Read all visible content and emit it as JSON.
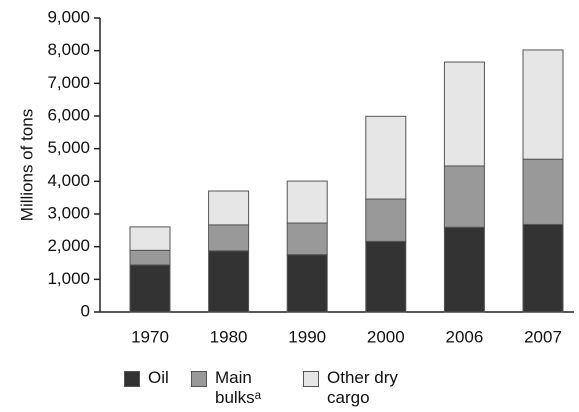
{
  "chart_data": {
    "type": "stacked_bar",
    "y_label": "Millions of tons",
    "categories": [
      "1970",
      "1980",
      "1990",
      "2000",
      "2006",
      "2007"
    ],
    "series": [
      {
        "name": "Oil",
        "color": "#333333",
        "values": [
          1440,
          1871,
          1755,
          2163,
          2595,
          2681
        ]
      },
      {
        "name": "Main bulksᵃ",
        "color": "#999999",
        "values": [
          448,
          796,
          968,
          1295,
          1876,
          1997
        ]
      },
      {
        "name": "Other dry cargo",
        "color": "#e6e6e6",
        "values": [
          717,
          1037,
          1285,
          2533,
          3181,
          3344
        ]
      }
    ],
    "ylim": [
      0,
      9000
    ],
    "yticks": [
      0,
      {
        "value": 1000,
        "label": "1,000"
      },
      {
        "value": 2000,
        "label": "2,000"
      },
      {
        "value": 3000,
        "label": "3,000"
      },
      {
        "value": 4000,
        "label": "4,000"
      },
      {
        "value": 5000,
        "label": "5,000"
      },
      {
        "value": 6000,
        "label": "6,000"
      },
      {
        "value": 7000,
        "label": "7,000"
      },
      {
        "value": 8000,
        "label": "8,000"
      },
      {
        "value": 9000,
        "label": "9,000"
      }
    ],
    "grid": false
  }
}
